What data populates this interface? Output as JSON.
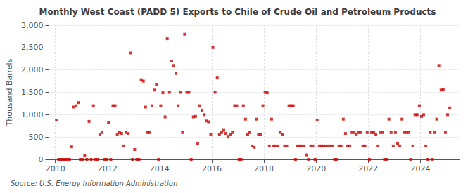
{
  "chart_data": {
    "type": "scatter",
    "title": "Monthly West Coast (PADD 5) Exports to Chile of Crude Oil and Petroleum Products",
    "ylabel": "Thousand Barrels",
    "source": "Source: U.S. Energy Information Administration",
    "color": "#cc0000",
    "marker": "square",
    "grid": true,
    "xlim": [
      2009.75,
      2025.5
    ],
    "xticks": [
      2010,
      2012,
      2014,
      2016,
      2018,
      2020,
      2022,
      2024
    ],
    "ylim": [
      0,
      3000
    ],
    "yticks": [
      0,
      500,
      {
        "value": 1000,
        "label": "1,000"
      },
      {
        "value": 1500,
        "label": "1,500"
      },
      {
        "value": 2000,
        "label": "2,000"
      },
      {
        "value": 2500,
        "label": "2,500"
      },
      {
        "value": 3000,
        "label": "3,000"
      }
    ],
    "x": [
      2010.0416666666667,
      2010.125,
      2010.2083333333333,
      2010.2916666666667,
      2010.375,
      2010.4583333333333,
      2010.5416666666667,
      2010.625,
      2010.7083333333333,
      2010.7916666666667,
      2010.875,
      2010.9583333333333,
      2011.0416666666667,
      2011.125,
      2011.2083333333333,
      2011.2916666666667,
      2011.375,
      2011.4583333333333,
      2011.5416666666667,
      2011.625,
      2011.7083333333333,
      2011.7916666666667,
      2011.875,
      2011.9583333333333,
      2012.0416666666667,
      2012.125,
      2012.2083333333333,
      2012.2916666666667,
      2012.375,
      2012.4583333333333,
      2012.5416666666667,
      2012.625,
      2012.7083333333333,
      2012.7916666666667,
      2012.875,
      2012.9583333333333,
      2013.0416666666667,
      2013.125,
      2013.2083333333333,
      2013.2916666666667,
      2013.375,
      2013.4583333333333,
      2013.5416666666667,
      2013.625,
      2013.7083333333333,
      2013.7916666666667,
      2013.875,
      2013.9583333333333,
      2014.0416666666667,
      2014.125,
      2014.2083333333333,
      2014.2916666666667,
      2014.375,
      2014.4583333333333,
      2014.5416666666667,
      2014.625,
      2014.7083333333333,
      2014.7916666666667,
      2014.875,
      2014.9583333333333,
      2015.0416666666667,
      2015.125,
      2015.2083333333333,
      2015.2916666666667,
      2015.375,
      2015.4583333333333,
      2015.5416666666667,
      2015.625,
      2015.7083333333333,
      2015.7916666666667,
      2015.875,
      2015.9583333333333,
      2016.0416666666667,
      2016.125,
      2016.2083333333333,
      2016.2916666666667,
      2016.375,
      2016.4583333333333,
      2016.5416666666667,
      2016.625,
      2016.7083333333333,
      2016.7916666666667,
      2016.875,
      2016.9583333333333,
      2017.0416666666667,
      2017.125,
      2017.2083333333333,
      2017.2916666666667,
      2017.375,
      2017.4583333333333,
      2017.5416666666667,
      2017.625,
      2017.7083333333333,
      2017.7916666666667,
      2017.875,
      2017.9583333333333,
      2018.0416666666667,
      2018.125,
      2018.2083333333333,
      2018.2916666666667,
      2018.375,
      2018.4583333333333,
      2018.5416666666667,
      2018.625,
      2018.7083333333333,
      2018.7916666666667,
      2018.875,
      2018.9583333333333,
      2019.0416666666667,
      2019.125,
      2019.2083333333333,
      2019.2916666666667,
      2019.375,
      2019.4583333333333,
      2019.5416666666667,
      2019.625,
      2019.7083333333333,
      2019.7916666666667,
      2019.875,
      2019.9583333333333,
      2020.0416666666667,
      2020.125,
      2020.2083333333333,
      2020.2916666666667,
      2020.375,
      2020.4583333333333,
      2020.5416666666667,
      2020.625,
      2020.7083333333333,
      2020.7916666666667,
      2020.875,
      2020.9583333333333,
      2021.0416666666667,
      2021.125,
      2021.2083333333333,
      2021.2916666666667,
      2021.375,
      2021.4583333333333,
      2021.5416666666667,
      2021.625,
      2021.7083333333333,
      2021.7916666666667,
      2021.875,
      2021.9583333333333,
      2022.0416666666667,
      2022.125,
      2022.2083333333333,
      2022.2916666666667,
      2022.375,
      2022.4583333333333,
      2022.5416666666667,
      2022.625,
      2022.7083333333333,
      2022.7916666666667,
      2022.875,
      2022.9583333333333,
      2023.0416666666667,
      2023.125,
      2023.2083333333333,
      2023.2916666666667,
      2023.375,
      2023.4583333333333,
      2023.5416666666667,
      2023.625,
      2023.7083333333333,
      2023.7916666666667,
      2023.875,
      2023.9583333333333,
      2024.0416666666667,
      2024.125,
      2024.2083333333333,
      2024.2916666666667,
      2024.375,
      2024.4583333333333,
      2024.5416666666667,
      2024.625,
      2024.7083333333333,
      2024.7916666666667,
      2024.875,
      2024.9583333333333,
      2025.0416666666667,
      2025.125
    ],
    "values": [
      880,
      0,
      0,
      0,
      0,
      0,
      0,
      280,
      1170,
      1200,
      1270,
      0,
      0,
      80,
      0,
      850,
      0,
      1200,
      0,
      0,
      550,
      600,
      0,
      0,
      830,
      0,
      1200,
      1200,
      550,
      600,
      580,
      300,
      600,
      580,
      2380,
      0,
      220,
      0,
      0,
      1780,
      1750,
      1170,
      600,
      600,
      1200,
      1550,
      1680,
      0,
      1200,
      1490,
      950,
      2700,
      1500,
      2200,
      2100,
      1920,
      1200,
      1500,
      600,
      2800,
      1500,
      1500,
      0,
      950,
      960,
      350,
      1200,
      1100,
      1000,
      860,
      840,
      550,
      2500,
      1500,
      1820,
      550,
      600,
      650,
      580,
      500,
      550,
      600,
      1200,
      1200,
      0,
      0,
      1200,
      900,
      550,
      600,
      300,
      270,
      900,
      550,
      550,
      1200,
      1500,
      1490,
      300,
      900,
      300,
      300,
      300,
      600,
      550,
      300,
      300,
      1200,
      1200,
      1200,
      0,
      300,
      300,
      300,
      300,
      100,
      0,
      300,
      300,
      0,
      880,
      300,
      300,
      300,
      300,
      300,
      300,
      300,
      0,
      0,
      300,
      300,
      900,
      580,
      300,
      300,
      600,
      600,
      550,
      600,
      600,
      300,
      300,
      600,
      0,
      600,
      600,
      550,
      300,
      600,
      600,
      0,
      0,
      900,
      600,
      300,
      600,
      350,
      300,
      900,
      600,
      600,
      600,
      0,
      300,
      1000,
      1000,
      1200,
      960,
      1000,
      300,
      0,
      600,
      0,
      600,
      900,
      2100,
      1550,
      1560,
      600,
      1000,
      1150
    ]
  }
}
